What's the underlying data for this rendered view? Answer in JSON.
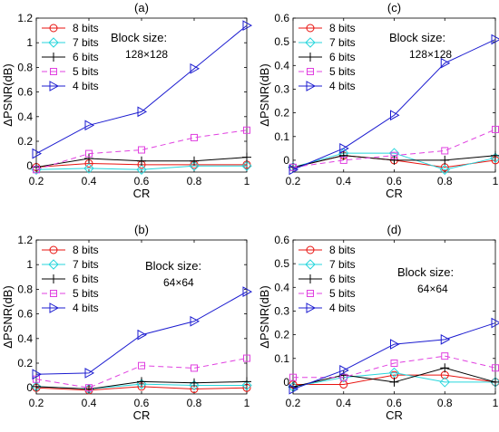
{
  "colors": {
    "8 bits": "#e8130f",
    "7 bits": "#27d6dc",
    "6 bits": "#000000",
    "5 bits": "#e040e0",
    "4 bits": "#1c1cd0"
  },
  "chart_data": [
    {
      "type": "line",
      "panel_label": "(a)",
      "annotation": [
        "Block size:",
        "128×128"
      ],
      "xlabel": "CR",
      "ylabel": "ΔPSNR(dB)",
      "xlim": [
        0.2,
        1
      ],
      "ylim": [
        -0.05,
        1.2
      ],
      "x_ticks": [
        0.2,
        0.4,
        0.6,
        0.8,
        1
      ],
      "x_tick_labels": [
        "0.2",
        "0.4",
        "0.6",
        "0.8",
        "1"
      ],
      "y_ticks": [
        0,
        0.2,
        0.4,
        0.6,
        0.8,
        1,
        1.2
      ],
      "y_tick_labels": [
        "0",
        "0.2",
        "0.4",
        "0.6",
        "0.8",
        "1",
        "1.2"
      ],
      "legend_position": "top-left",
      "x": [
        0.2,
        0.4,
        0.6,
        0.8,
        1
      ],
      "series": [
        {
          "name": "8 bits",
          "marker": "circle",
          "dash": "solid",
          "values": [
            -0.01,
            0.02,
            0.01,
            0.01,
            0.01
          ]
        },
        {
          "name": "7 bits",
          "marker": "diamond",
          "dash": "solid",
          "values": [
            -0.03,
            -0.02,
            -0.03,
            0.0,
            0.0
          ]
        },
        {
          "name": "6 bits",
          "marker": "plus",
          "dash": "solid",
          "values": [
            -0.01,
            0.06,
            0.04,
            0.04,
            0.07
          ]
        },
        {
          "name": "5 bits",
          "marker": "square",
          "dash": "dashed",
          "values": [
            -0.03,
            0.1,
            0.13,
            0.23,
            0.29
          ]
        },
        {
          "name": "4 bits",
          "marker": "triangle-right",
          "dash": "solid",
          "values": [
            0.1,
            0.33,
            0.44,
            0.79,
            1.14
          ]
        }
      ]
    },
    {
      "type": "line",
      "panel_label": "(c)",
      "annotation": [
        "Block size:",
        "128×128"
      ],
      "xlabel": "CR",
      "ylabel": "ΔPSNR(dB)",
      "xlim": [
        0.2,
        1
      ],
      "ylim": [
        -0.05,
        0.6
      ],
      "x_ticks": [
        0.2,
        0.4,
        0.6,
        0.8,
        1
      ],
      "x_tick_labels": [
        "0.2",
        "0.4",
        "0.6",
        "0.8",
        "1"
      ],
      "y_ticks": [
        0,
        0.1,
        0.2,
        0.3,
        0.4,
        0.5,
        0.6
      ],
      "y_tick_labels": [
        "0",
        "0.1",
        "0.2",
        "0.3",
        "0.4",
        "0.5",
        "0.6"
      ],
      "legend_position": "top-left",
      "x": [
        0.2,
        0.4,
        0.6,
        0.8,
        1
      ],
      "series": [
        {
          "name": "8 bits",
          "marker": "circle",
          "dash": "solid",
          "values": [
            -0.03,
            0.02,
            0.0,
            -0.03,
            0.0
          ]
        },
        {
          "name": "7 bits",
          "marker": "diamond",
          "dash": "solid",
          "values": [
            -0.03,
            0.03,
            0.03,
            -0.04,
            0.01
          ]
        },
        {
          "name": "6 bits",
          "marker": "plus",
          "dash": "solid",
          "values": [
            -0.03,
            0.02,
            0.0,
            0.0,
            0.02
          ]
        },
        {
          "name": "5 bits",
          "marker": "square",
          "dash": "dashed",
          "values": [
            -0.03,
            0.0,
            0.02,
            0.04,
            0.13
          ]
        },
        {
          "name": "4 bits",
          "marker": "triangle-right",
          "dash": "solid",
          "values": [
            -0.04,
            0.05,
            0.19,
            0.41,
            0.51
          ]
        }
      ]
    },
    {
      "type": "line",
      "panel_label": "(b)",
      "annotation": [
        "Block size:",
        "64×64"
      ],
      "xlabel": "CR",
      "ylabel": "ΔPSNR(dB)",
      "xlim": [
        0.2,
        1
      ],
      "ylim": [
        -0.05,
        1.2
      ],
      "x_ticks": [
        0.2,
        0.4,
        0.6,
        0.8,
        1
      ],
      "x_tick_labels": [
        "0.2",
        "0.4",
        "0.6",
        "0.8",
        "1"
      ],
      "y_ticks": [
        0,
        0.2,
        0.4,
        0.6,
        0.8,
        1,
        1.2
      ],
      "y_tick_labels": [
        "0",
        "0.2",
        "0.4",
        "0.6",
        "0.8",
        "1",
        "1.2"
      ],
      "legend_position": "top-left",
      "x": [
        0.2,
        0.4,
        0.6,
        0.8,
        1
      ],
      "series": [
        {
          "name": "8 bits",
          "marker": "circle",
          "dash": "solid",
          "values": [
            0.0,
            -0.02,
            0.01,
            -0.01,
            0.0
          ]
        },
        {
          "name": "7 bits",
          "marker": "diamond",
          "dash": "solid",
          "values": [
            0.01,
            -0.01,
            0.03,
            0.02,
            0.02
          ]
        },
        {
          "name": "6 bits",
          "marker": "plus",
          "dash": "solid",
          "values": [
            0.01,
            -0.01,
            0.05,
            0.04,
            0.05
          ]
        },
        {
          "name": "5 bits",
          "marker": "square",
          "dash": "dashed",
          "values": [
            0.07,
            0.0,
            0.18,
            0.16,
            0.24
          ]
        },
        {
          "name": "4 bits",
          "marker": "triangle-right",
          "dash": "solid",
          "values": [
            0.11,
            0.12,
            0.43,
            0.54,
            0.78
          ]
        }
      ]
    },
    {
      "type": "line",
      "panel_label": "(d)",
      "annotation": [
        "Block size:",
        "64×64"
      ],
      "xlabel": "CR",
      "ylabel": "ΔPSNR(dB)",
      "xlim": [
        0.2,
        1
      ],
      "ylim": [
        -0.05,
        0.6
      ],
      "x_ticks": [
        0.2,
        0.4,
        0.6,
        0.8,
        1
      ],
      "x_tick_labels": [
        "0.2",
        "0.4",
        "0.6",
        "0.8",
        "1"
      ],
      "y_ticks": [
        0,
        0.1,
        0.2,
        0.3,
        0.4,
        0.5,
        0.6
      ],
      "y_tick_labels": [
        "0",
        "0.1",
        "0.2",
        "0.3",
        "0.4",
        "0.5",
        "0.6"
      ],
      "legend_position": "top-left",
      "x": [
        0.2,
        0.4,
        0.6,
        0.8,
        1
      ],
      "series": [
        {
          "name": "8 bits",
          "marker": "circle",
          "dash": "solid",
          "values": [
            -0.01,
            -0.01,
            0.03,
            0.03,
            0.0
          ]
        },
        {
          "name": "7 bits",
          "marker": "diamond",
          "dash": "solid",
          "values": [
            -0.02,
            0.02,
            0.04,
            0.0,
            0.0
          ]
        },
        {
          "name": "6 bits",
          "marker": "plus",
          "dash": "solid",
          "values": [
            -0.02,
            0.03,
            0.0,
            0.06,
            0.0
          ]
        },
        {
          "name": "5 bits",
          "marker": "square",
          "dash": "dashed",
          "values": [
            0.02,
            0.02,
            0.08,
            0.11,
            0.06
          ]
        },
        {
          "name": "4 bits",
          "marker": "triangle-right",
          "dash": "solid",
          "values": [
            -0.03,
            0.05,
            0.16,
            0.18,
            0.25
          ]
        }
      ]
    }
  ]
}
